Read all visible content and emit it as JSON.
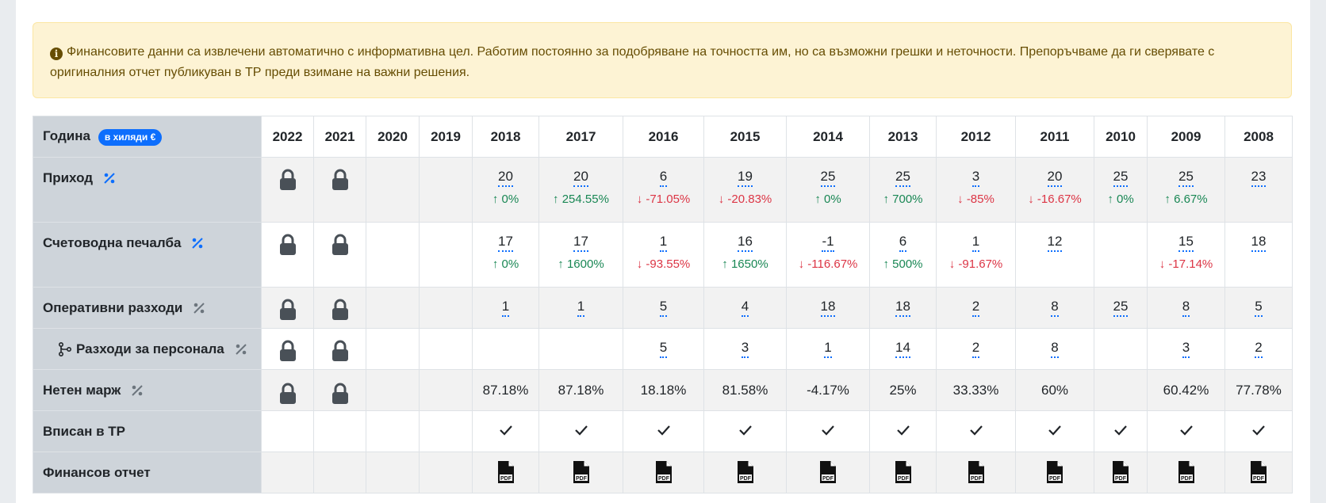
{
  "alert": {
    "icon": "info-circle-icon",
    "text": "Финансовите данни са извлечени автоматично с информативна цел. Работим постоянно за подобряване на точността им, но са възможни грешки и неточности. Препоръчваме да ги сверявате с оригиналния отчет публикуван в ТР преди взимане на важни решения."
  },
  "table": {
    "header_label": "Година",
    "unit_badge": "в хиляди €",
    "years": [
      "2022",
      "2021",
      "2020",
      "2019",
      "2018",
      "2017",
      "2016",
      "2015",
      "2014",
      "2013",
      "2012",
      "2011",
      "2010",
      "2009",
      "2008"
    ],
    "rows": {
      "income": {
        "label": "Приход",
        "values": [
          "lock",
          "lock",
          "",
          "",
          "20",
          "20",
          "6",
          "19",
          "25",
          "25",
          "3",
          "20",
          "25",
          "25",
          "23"
        ],
        "changes": [
          null,
          null,
          null,
          null,
          {
            "dir": "up",
            "text": "0%"
          },
          {
            "dir": "up",
            "text": "254.55%"
          },
          {
            "dir": "down",
            "text": "-71.05%"
          },
          {
            "dir": "down",
            "text": "-20.83%"
          },
          {
            "dir": "up",
            "text": "0%"
          },
          {
            "dir": "up",
            "text": "700%"
          },
          {
            "dir": "down",
            "text": "-85%"
          },
          {
            "dir": "down",
            "text": "-16.67%"
          },
          {
            "dir": "up",
            "text": "0%"
          },
          {
            "dir": "up",
            "text": "6.67%"
          },
          null
        ]
      },
      "profit": {
        "label": "Счетоводна печалба",
        "values": [
          "lock",
          "lock",
          "",
          "",
          "17",
          "17",
          "1",
          "16",
          "-1",
          "6",
          "1",
          "12",
          "",
          "15",
          "18"
        ],
        "changes": [
          null,
          null,
          null,
          null,
          {
            "dir": "up",
            "text": "0%"
          },
          {
            "dir": "up",
            "text": "1600%"
          },
          {
            "dir": "down",
            "text": "-93.55%"
          },
          {
            "dir": "up",
            "text": "1650%"
          },
          {
            "dir": "down",
            "text": "-116.67%"
          },
          {
            "dir": "up",
            "text": "500%"
          },
          {
            "dir": "down",
            "text": "-91.67%"
          },
          null,
          null,
          {
            "dir": "down",
            "text": "-17.14%"
          },
          null
        ]
      },
      "opex": {
        "label": "Оперативни разходи",
        "values": [
          "lock",
          "lock",
          "",
          "",
          "1",
          "1",
          "5",
          "4",
          "18",
          "18",
          "2",
          "8",
          "25",
          "8",
          "5"
        ]
      },
      "staff": {
        "label": "Разходи за персонала",
        "values": [
          "lock",
          "lock",
          "",
          "",
          "",
          "",
          "5",
          "3",
          "1",
          "14",
          "2",
          "8",
          "",
          "3",
          "2"
        ]
      },
      "margin": {
        "label": "Нетен марж",
        "values": [
          "lock",
          "lock",
          "",
          "",
          "87.18%",
          "87.18%",
          "18.18%",
          "81.58%",
          "-4.17%",
          "25%",
          "33.33%",
          "60%",
          "",
          "60.42%",
          "77.78%"
        ]
      },
      "registered": {
        "label": "Вписан в ТР",
        "values": [
          false,
          false,
          false,
          false,
          true,
          true,
          true,
          true,
          true,
          true,
          true,
          true,
          true,
          true,
          true
        ]
      },
      "report": {
        "label": "Финансов отчет",
        "values": [
          false,
          false,
          false,
          false,
          true,
          true,
          true,
          true,
          true,
          true,
          true,
          true,
          true,
          true,
          true
        ]
      }
    }
  },
  "colors": {
    "up": "#198754",
    "down": "#dc3545",
    "accent": "#0d6efd",
    "label_bg": "#ced4da",
    "alert_bg": "#fdf3d4"
  }
}
